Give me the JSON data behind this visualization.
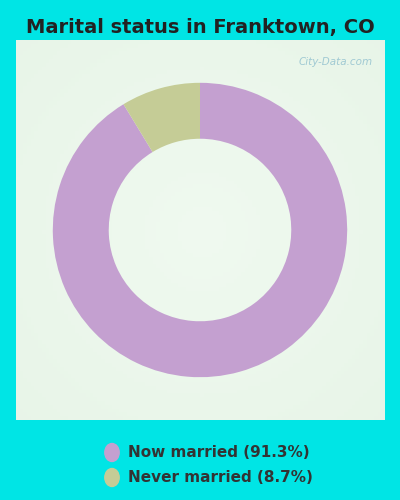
{
  "title": "Marital status in Franktown, CO",
  "slices": [
    91.3,
    8.7
  ],
  "labels": [
    "Now married (91.3%)",
    "Never married (8.7%)"
  ],
  "colors": [
    "#c4a0d0",
    "#c5cc96"
  ],
  "outer_bg_color": "#00e5e5",
  "chart_bg_color": "#e8f5e8",
  "donut_width": 0.38,
  "start_angle": 90,
  "title_fontsize": 14,
  "legend_fontsize": 11,
  "watermark": "City-Data.com"
}
